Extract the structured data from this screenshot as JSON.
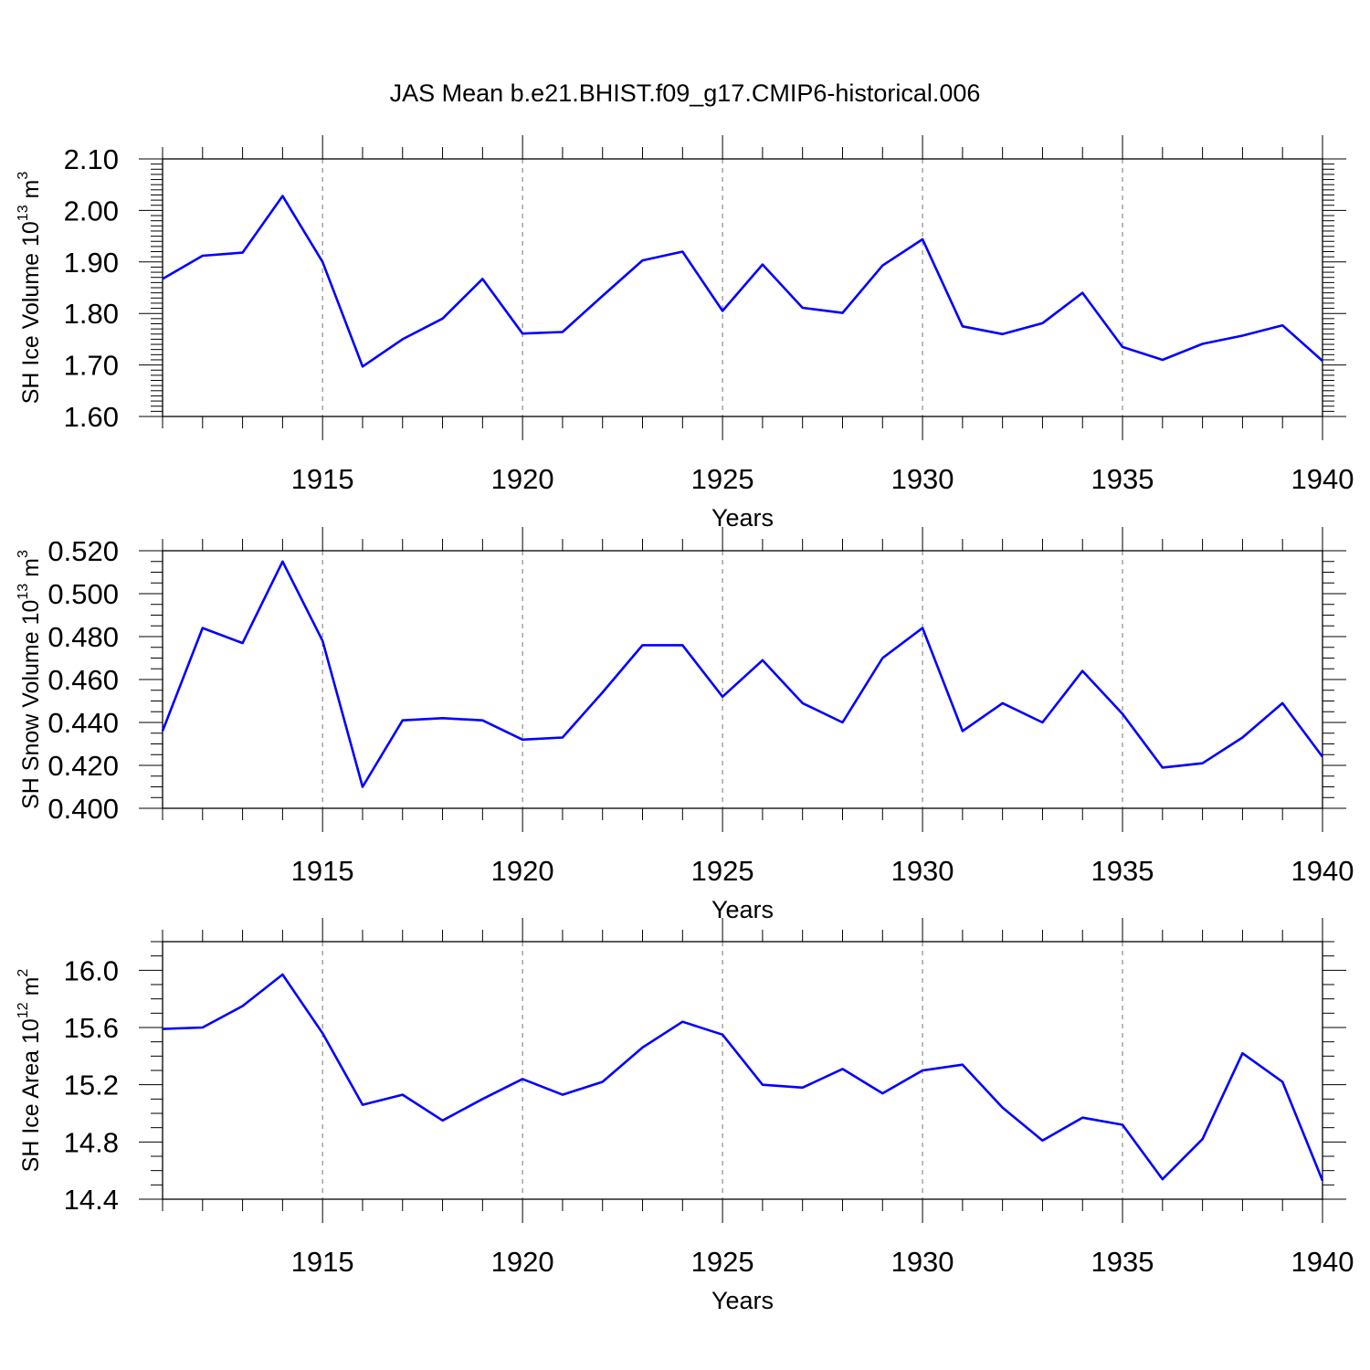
{
  "title": "JAS Mean b.e21.BHIST.f09_g17.CMIP6-historical.006",
  "colors": {
    "series": "#0000ff",
    "axis": "#000000",
    "grid": "#777777"
  },
  "chart_data": [
    {
      "type": "line",
      "ylabel_parts": [
        "SH Ice Volume 10",
        "13",
        " m",
        "3"
      ],
      "xlabel": "Years",
      "xlim": [
        1911,
        1940
      ],
      "ylim": [
        1.6,
        2.1
      ],
      "x_ticks": [
        "1915",
        "1920",
        "1925",
        "1930",
        "1935",
        "1940"
      ],
      "y_ticks": [
        "1.60",
        "1.70",
        "1.80",
        "1.90",
        "2.00",
        "2.10"
      ],
      "grid": "vertical dashed at major x ticks",
      "series": [
        {
          "x": [
            1911,
            1912,
            1913,
            1914,
            1915,
            1916,
            1917,
            1918,
            1919,
            1920,
            1921,
            1922,
            1923,
            1924,
            1925,
            1926,
            1927,
            1928,
            1929,
            1930,
            1931,
            1932,
            1933,
            1934,
            1935,
            1936,
            1937,
            1938,
            1939,
            1940
          ],
          "values": [
            1.867,
            1.912,
            1.918,
            2.028,
            1.9,
            1.697,
            1.75,
            1.79,
            1.867,
            1.761,
            1.764,
            1.834,
            1.903,
            1.92,
            1.805,
            1.895,
            1.811,
            1.801,
            1.893,
            1.944,
            1.775,
            1.76,
            1.781,
            1.84,
            1.735,
            1.71,
            1.741,
            1.757,
            1.777,
            1.708
          ]
        }
      ]
    },
    {
      "type": "line",
      "ylabel_parts": [
        "SH Snow Volume 10",
        "13",
        " m",
        "3"
      ],
      "xlabel": "Years",
      "xlim": [
        1911,
        1940
      ],
      "ylim": [
        0.4,
        0.52
      ],
      "x_ticks": [
        "1915",
        "1920",
        "1925",
        "1930",
        "1935",
        "1940"
      ],
      "y_ticks": [
        "0.400",
        "0.420",
        "0.440",
        "0.460",
        "0.480",
        "0.500",
        "0.520"
      ],
      "grid": "vertical dashed at major x ticks",
      "series": [
        {
          "x": [
            1911,
            1912,
            1913,
            1914,
            1915,
            1916,
            1917,
            1918,
            1919,
            1920,
            1921,
            1922,
            1923,
            1924,
            1925,
            1926,
            1927,
            1928,
            1929,
            1930,
            1931,
            1932,
            1933,
            1934,
            1935,
            1936,
            1937,
            1938,
            1939,
            1940
          ],
          "values": [
            0.436,
            0.484,
            0.477,
            0.515,
            0.478,
            0.41,
            0.441,
            0.442,
            0.441,
            0.432,
            0.433,
            0.454,
            0.476,
            0.476,
            0.452,
            0.469,
            0.449,
            0.44,
            0.47,
            0.484,
            0.436,
            0.449,
            0.44,
            0.464,
            0.444,
            0.419,
            0.421,
            0.433,
            0.449,
            0.424
          ]
        }
      ]
    },
    {
      "type": "line",
      "ylabel_parts": [
        "SH Ice Area 10",
        "12",
        " m",
        "2"
      ],
      "xlabel": "Years",
      "xlim": [
        1911,
        1940
      ],
      "ylim": [
        14.4,
        16.2
      ],
      "x_ticks": [
        "1915",
        "1920",
        "1925",
        "1930",
        "1935",
        "1940"
      ],
      "y_ticks": [
        "14.4",
        "14.8",
        "15.2",
        "15.6",
        "16.0"
      ],
      "grid": "vertical dashed at major x ticks",
      "series": [
        {
          "x": [
            1911,
            1912,
            1913,
            1914,
            1915,
            1916,
            1917,
            1918,
            1919,
            1920,
            1921,
            1922,
            1923,
            1924,
            1925,
            1926,
            1927,
            1928,
            1929,
            1930,
            1931,
            1932,
            1933,
            1934,
            1935,
            1936,
            1937,
            1938,
            1939,
            1940
          ],
          "values": [
            15.59,
            15.6,
            15.75,
            15.97,
            15.56,
            15.06,
            15.13,
            14.95,
            15.1,
            15.24,
            15.13,
            15.22,
            15.46,
            15.64,
            15.55,
            15.2,
            15.18,
            15.31,
            15.14,
            15.3,
            15.34,
            15.04,
            14.81,
            14.97,
            14.92,
            14.54,
            14.82,
            15.42,
            15.22,
            14.53
          ]
        }
      ]
    }
  ]
}
